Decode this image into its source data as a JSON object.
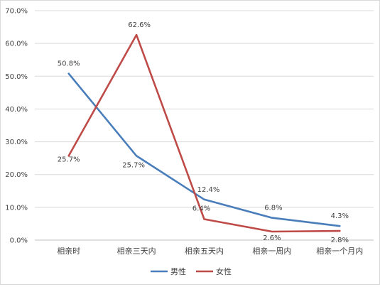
{
  "chart_data": {
    "type": "line",
    "categories": [
      "相亲时",
      "相亲三天内",
      "相亲五天内",
      "相亲一周内",
      "相亲一个月内"
    ],
    "series": [
      {
        "name": "男性",
        "values": [
          50.8,
          25.7,
          12.4,
          6.8,
          4.3
        ],
        "labels": [
          "50.8%",
          "25.7%",
          "12.4%",
          "6.8%",
          "4.3%"
        ],
        "color": "#4a7ebb"
      },
      {
        "name": "女性",
        "values": [
          25.7,
          62.6,
          6.4,
          2.6,
          2.8
        ],
        "labels": [
          "25.7%",
          "62.6%",
          "6.4%",
          "2.6%",
          "2.8%"
        ],
        "color": "#be4b48"
      }
    ],
    "yticks": [
      "0.0%",
      "10.0%",
      "20.0%",
      "30.0%",
      "40.0%",
      "50.0%",
      "60.0%",
      "70.0%"
    ],
    "ylim": [
      0,
      70
    ],
    "grid": true,
    "legend_position": "bottom"
  }
}
